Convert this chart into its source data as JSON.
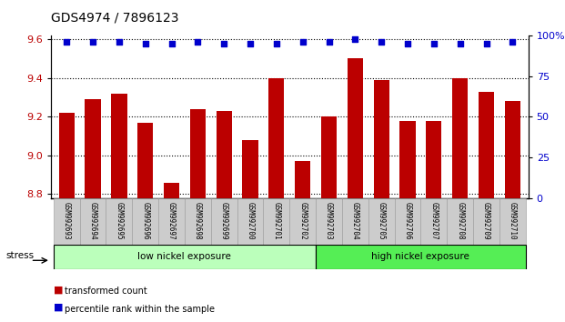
{
  "title": "GDS4974 / 7896123",
  "samples": [
    "GSM992693",
    "GSM992694",
    "GSM992695",
    "GSM992696",
    "GSM992697",
    "GSM992698",
    "GSM992699",
    "GSM992700",
    "GSM992701",
    "GSM992702",
    "GSM992703",
    "GSM992704",
    "GSM992705",
    "GSM992706",
    "GSM992707",
    "GSM992708",
    "GSM992709",
    "GSM992710"
  ],
  "bar_values": [
    9.22,
    9.29,
    9.32,
    9.17,
    8.86,
    9.24,
    9.23,
    9.08,
    9.4,
    8.97,
    9.2,
    9.5,
    9.39,
    9.18,
    9.18,
    9.4,
    9.33,
    9.28
  ],
  "dot_values_pct": [
    96,
    96,
    96,
    95,
    95,
    96,
    95,
    95,
    95,
    96,
    96,
    98,
    96,
    95,
    95,
    95,
    95,
    96
  ],
  "bar_color": "#bb0000",
  "dot_color": "#0000cc",
  "ylim_left": [
    8.78,
    9.62
  ],
  "ylim_right": [
    0,
    100
  ],
  "yticks_left": [
    8.8,
    9.0,
    9.2,
    9.4,
    9.6
  ],
  "yticks_right": [
    0,
    25,
    50,
    75,
    100
  ],
  "group1_label": "low nickel exposure",
  "group2_label": "high nickel exposure",
  "group1_count": 10,
  "group2_count": 8,
  "group1_color": "#bbffbb",
  "group2_color": "#55ee55",
  "stress_label": "stress",
  "legend1": "transformed count",
  "legend2": "percentile rank within the sample",
  "background_color": "#ffffff",
  "plot_bg_color": "#ffffff",
  "tick_label_bg": "#cccccc",
  "title_fontsize": 10,
  "tick_fontsize": 8,
  "bar_bottom": 8.78
}
